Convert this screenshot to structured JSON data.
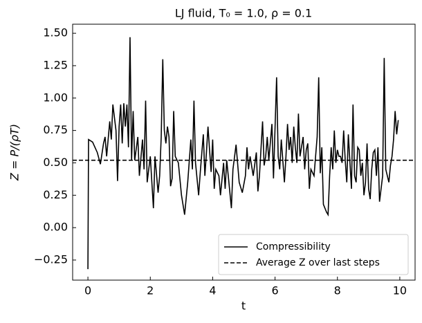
{
  "chart_data": {
    "type": "line",
    "title": "LJ fluid, T₀ = 1.0, ρ = 0.1",
    "x_label": "t",
    "y_label": "Z = P/(ρT)",
    "x": [
      0.0,
      0.02,
      0.15,
      0.3,
      0.4,
      0.5,
      0.55,
      0.6,
      0.7,
      0.75,
      0.8,
      0.9,
      0.95,
      1.0,
      1.05,
      1.1,
      1.15,
      1.2,
      1.25,
      1.3,
      1.35,
      1.4,
      1.45,
      1.5,
      1.6,
      1.65,
      1.75,
      1.8,
      1.85,
      1.9,
      2.0,
      2.1,
      2.15,
      2.25,
      2.3,
      2.35,
      2.4,
      2.45,
      2.5,
      2.55,
      2.6,
      2.65,
      2.7,
      2.75,
      2.8,
      2.9,
      3.0,
      3.1,
      3.2,
      3.3,
      3.35,
      3.4,
      3.45,
      3.55,
      3.6,
      3.7,
      3.75,
      3.8,
      3.85,
      3.9,
      3.95,
      4.0,
      4.05,
      4.1,
      4.2,
      4.25,
      4.35,
      4.4,
      4.45,
      4.5,
      4.6,
      4.65,
      4.75,
      4.85,
      4.95,
      5.05,
      5.1,
      5.15,
      5.2,
      5.3,
      5.4,
      5.45,
      5.5,
      5.6,
      5.65,
      5.7,
      5.75,
      5.8,
      5.9,
      5.95,
      6.05,
      6.1,
      6.15,
      6.2,
      6.3,
      6.35,
      6.4,
      6.45,
      6.5,
      6.55,
      6.6,
      6.65,
      6.7,
      6.75,
      6.8,
      6.9,
      6.95,
      7.0,
      7.05,
      7.1,
      7.15,
      7.25,
      7.3,
      7.35,
      7.4,
      7.45,
      7.5,
      7.55,
      7.65,
      7.7,
      7.75,
      7.8,
      7.85,
      7.9,
      7.95,
      8.0,
      8.05,
      8.1,
      8.15,
      8.2,
      8.25,
      8.3,
      8.35,
      8.45,
      8.5,
      8.55,
      8.6,
      8.65,
      8.7,
      8.75,
      8.8,
      8.85,
      8.9,
      8.95,
      9.0,
      9.05,
      9.1,
      9.15,
      9.2,
      9.25,
      9.3,
      9.35,
      9.45,
      9.5,
      9.55,
      9.6,
      9.65,
      9.7,
      9.75,
      9.8,
      9.85,
      9.9,
      9.95
    ],
    "series": [
      {
        "name": "Compressibility",
        "color": "#000000",
        "values": [
          -0.32,
          0.68,
          0.66,
          0.58,
          0.49,
          0.65,
          0.7,
          0.55,
          0.82,
          0.68,
          0.95,
          0.75,
          0.36,
          0.78,
          0.95,
          0.65,
          0.96,
          0.78,
          0.95,
          0.62,
          1.47,
          0.52,
          0.9,
          0.52,
          0.7,
          0.4,
          0.68,
          0.45,
          0.98,
          0.35,
          0.55,
          0.15,
          0.55,
          0.27,
          0.4,
          0.7,
          1.3,
          0.75,
          0.65,
          0.78,
          0.7,
          0.32,
          0.38,
          0.9,
          0.55,
          0.5,
          0.25,
          0.1,
          0.35,
          0.68,
          0.45,
          0.98,
          0.5,
          0.25,
          0.42,
          0.72,
          0.4,
          0.58,
          0.78,
          0.6,
          0.43,
          0.68,
          0.3,
          0.45,
          0.4,
          0.25,
          0.5,
          0.3,
          0.52,
          0.4,
          0.15,
          0.45,
          0.64,
          0.35,
          0.27,
          0.4,
          0.62,
          0.45,
          0.55,
          0.4,
          0.58,
          0.28,
          0.4,
          0.82,
          0.48,
          0.55,
          0.7,
          0.52,
          0.8,
          0.38,
          1.16,
          0.55,
          0.45,
          0.68,
          0.35,
          0.55,
          0.8,
          0.6,
          0.7,
          0.5,
          0.78,
          0.62,
          0.5,
          0.88,
          0.55,
          0.7,
          0.45,
          0.6,
          0.65,
          0.3,
          0.45,
          0.4,
          0.55,
          0.7,
          1.16,
          0.42,
          0.62,
          0.18,
          0.12,
          0.1,
          0.4,
          0.62,
          0.45,
          0.75,
          0.5,
          0.6,
          0.55,
          0.55,
          0.5,
          0.75,
          0.52,
          0.35,
          0.72,
          0.3,
          0.95,
          0.4,
          0.35,
          0.62,
          0.6,
          0.4,
          0.5,
          0.25,
          0.35,
          0.65,
          0.3,
          0.22,
          0.45,
          0.58,
          0.6,
          0.4,
          0.62,
          0.2,
          0.4,
          1.31,
          0.45,
          0.4,
          0.35,
          0.48,
          0.55,
          0.68,
          0.9,
          0.72,
          0.83
        ]
      }
    ],
    "reference_line": {
      "name": "Average Z over last steps",
      "value": 0.52,
      "color": "#000000",
      "style": "dashed"
    },
    "xlim": [
      -0.49,
      10.49
    ],
    "ylim": [
      -0.405,
      1.57
    ],
    "xticks": [
      0,
      2,
      4,
      6,
      8,
      10
    ],
    "yticks": [
      {
        "value": -0.25,
        "label": "−0.25"
      },
      {
        "value": 0,
        "label": "0.00"
      },
      {
        "value": 0.25,
        "label": "0.25"
      },
      {
        "value": 0.5,
        "label": "0.50"
      },
      {
        "value": 0.75,
        "label": "0.75"
      },
      {
        "value": 1,
        "label": "1.00"
      },
      {
        "value": 1.25,
        "label": "1.25"
      },
      {
        "value": 1.5,
        "label": "1.50"
      }
    ],
    "grid": false,
    "legend": "lower right"
  }
}
